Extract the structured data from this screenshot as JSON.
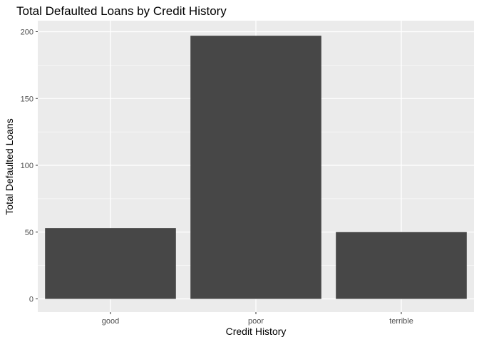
{
  "chart_data": {
    "type": "bar",
    "title": "Total Defaulted Loans by Credit History",
    "xlabel": "Credit History",
    "ylabel": "Total Defaulted Loans",
    "categories": [
      "good",
      "poor",
      "terrible"
    ],
    "values": [
      53,
      197,
      50
    ],
    "ylim": [
      0,
      210
    ],
    "yticks": [
      0,
      50,
      100,
      150,
      200
    ],
    "grid": true,
    "legend": "none",
    "colors": {
      "panel_background": "#ebebeb",
      "grid_major": "#ffffff",
      "bar_fill": "#474747"
    }
  }
}
